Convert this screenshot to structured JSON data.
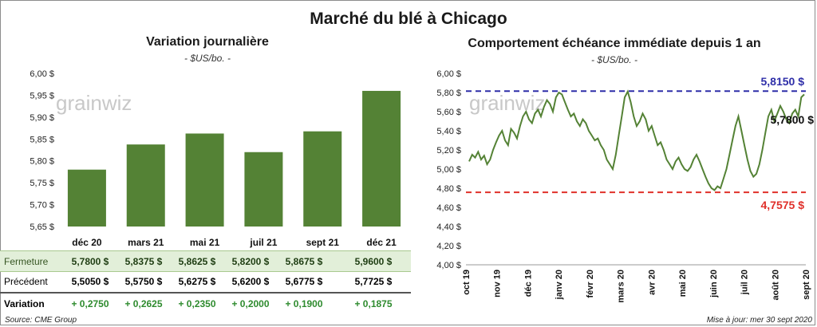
{
  "title": "Marché du blé à Chicago",
  "left": {
    "title": "Variation  journalière",
    "unit": "- $US/bo. -",
    "watermark": "grainwiz",
    "table": {
      "rows": [
        {
          "label": "Fermeture",
          "values": [
            "5,7800  $",
            "5,8375  $",
            "5,8625  $",
            "5,8200  $",
            "5,8675  $",
            "5,9600  $"
          ]
        },
        {
          "label": "Précédent",
          "values": [
            "5,5050  $",
            "5,5750  $",
            "5,6275  $",
            "5,6200  $",
            "5,6775  $",
            "5,7725  $"
          ]
        },
        {
          "label": "Variation",
          "values": [
            "+ 0,2750",
            "+ 0,2625",
            "+ 0,2350",
            "+ 0,2000",
            "+ 0,1900",
            "+ 0,1875"
          ]
        }
      ]
    },
    "source": "Source: CME Group"
  },
  "right": {
    "title": "Comportement  échéance immédiate depuis 1 an",
    "unit": "- $US/bo. -",
    "watermark": "grainwiz",
    "high_label": "5,8150  $",
    "low_label": "4,7575  $",
    "last_label": "5,7800 $",
    "update": "Mise à jour: mer 30 sept 2020"
  },
  "chart_data": [
    {
      "type": "bar",
      "title": "Variation  journalière",
      "subtitle": "- $US/bo. -",
      "categories": [
        "déc 20",
        "mars 21",
        "mai 21",
        "juil 21",
        "sept 21",
        "déc 21"
      ],
      "values": [
        5.78,
        5.8375,
        5.8625,
        5.82,
        5.8675,
        5.96
      ],
      "ylim": [
        5.65,
        6.0
      ],
      "yticks": [
        "6,00 $",
        "5,95 $",
        "5,90 $",
        "5,85 $",
        "5,80 $",
        "5,75 $",
        "5,70 $",
        "5,65 $"
      ],
      "color": "#548235",
      "grid": false
    },
    {
      "type": "line",
      "title": "Comportement  échéance immédiate depuis 1 an",
      "subtitle": "- $US/bo. -",
      "xticks": [
        "oct 19",
        "nov 19",
        "déc 19",
        "janv 20",
        "févr 20",
        "mars 20",
        "avr 20",
        "mai 20",
        "juin 20",
        "juil 20",
        "août 20",
        "sept 20"
      ],
      "yticks": [
        "6,00 $",
        "5,80 $",
        "5,60 $",
        "5,40 $",
        "5,20 $",
        "5,00 $",
        "4,80 $",
        "4,60 $",
        "4,40 $",
        "4,20 $",
        "4,00 $"
      ],
      "ylim": [
        4.0,
        6.0
      ],
      "color": "#548235",
      "high": 5.815,
      "low": 4.7575,
      "last": 5.78,
      "series_values": [
        5.08,
        5.15,
        5.12,
        5.18,
        5.1,
        5.14,
        5.05,
        5.1,
        5.2,
        5.28,
        5.35,
        5.4,
        5.3,
        5.25,
        5.42,
        5.38,
        5.32,
        5.45,
        5.55,
        5.6,
        5.52,
        5.48,
        5.58,
        5.62,
        5.55,
        5.65,
        5.72,
        5.68,
        5.6,
        5.75,
        5.8,
        5.78,
        5.7,
        5.62,
        5.55,
        5.58,
        5.5,
        5.45,
        5.52,
        5.48,
        5.4,
        5.35,
        5.3,
        5.32,
        5.25,
        5.2,
        5.1,
        5.05,
        5.0,
        5.15,
        5.35,
        5.55,
        5.75,
        5.81,
        5.7,
        5.55,
        5.45,
        5.5,
        5.58,
        5.52,
        5.4,
        5.45,
        5.35,
        5.25,
        5.28,
        5.2,
        5.1,
        5.05,
        5.0,
        5.08,
        5.12,
        5.05,
        5.0,
        4.98,
        5.02,
        5.1,
        5.15,
        5.08,
        5.0,
        4.92,
        4.85,
        4.8,
        4.78,
        4.82,
        4.8,
        4.9,
        5.0,
        5.15,
        5.3,
        5.45,
        5.55,
        5.4,
        5.25,
        5.1,
        4.98,
        4.92,
        4.95,
        5.05,
        5.2,
        5.38,
        5.55,
        5.62,
        5.5,
        5.58,
        5.66,
        5.6,
        5.52,
        5.48,
        5.58,
        5.62,
        5.55,
        5.75,
        5.78
      ]
    }
  ]
}
